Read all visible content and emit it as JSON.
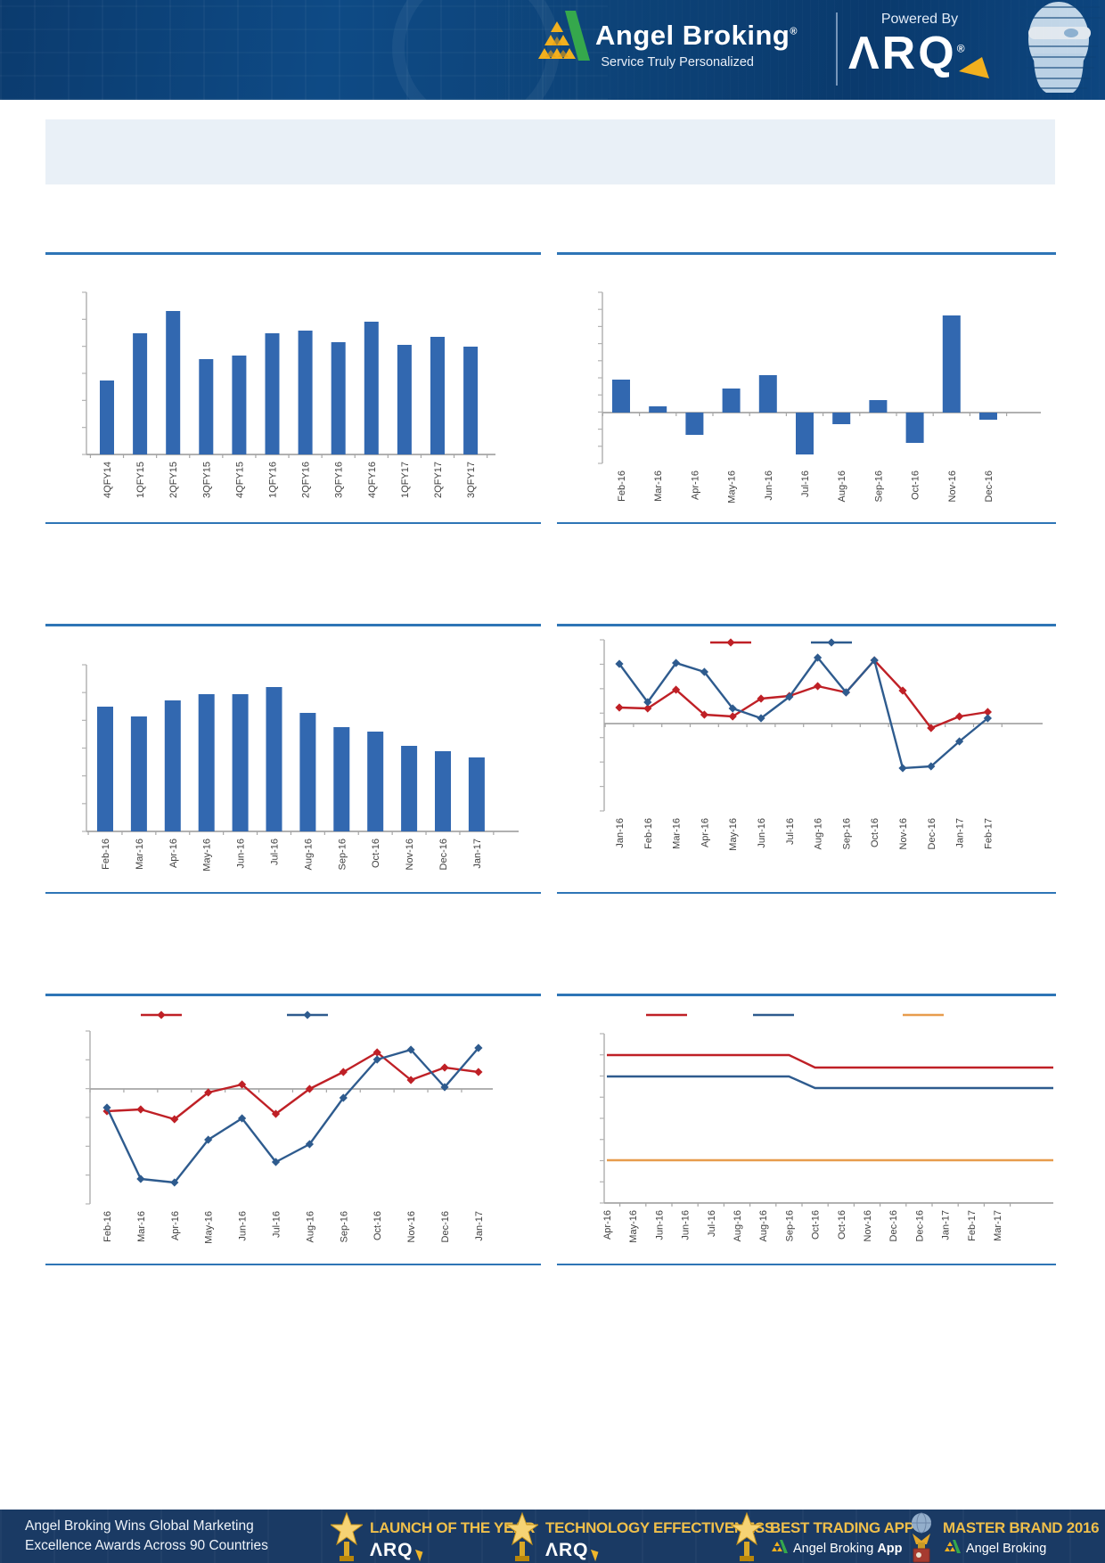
{
  "header": {
    "brand": "Angel Broking",
    "brand_registered": "®",
    "tagline": "Service Truly Personalized",
    "powered_by": "Powered By",
    "arq": "ΛRQ",
    "arq_registered": "®"
  },
  "banner": {
    "text": ""
  },
  "colors": {
    "bar_blue": "#3268b0",
    "line_dark_blue": "#2e5b8e",
    "line_red": "#bf2026",
    "line_orange": "#e79c4d",
    "accent_rule_blue": "#2e75b6",
    "axis_gray": "#a9a9a9",
    "header_navy": "#0d4378",
    "footer_navy": "#1a3a64",
    "banner_light_blue": "#e9f0f7",
    "award_gold": "#efbf4b"
  },
  "charts": [
    {
      "id": "quarterly-bar",
      "title": "",
      "chart_data": {
        "type": "bar",
        "categories": [
          "4QFY14",
          "1QFY15",
          "2QFY15",
          "3QFY15",
          "4QFY15",
          "1QFY16",
          "2QFY16",
          "3QFY16",
          "4QFY16",
          "1QFY17",
          "2QFY17",
          "3QFY17"
        ],
        "values": [
          83,
          136,
          161,
          107,
          111,
          136,
          139,
          126,
          149,
          123,
          132,
          121
        ],
        "units": "relative (y-axis labels not shown in source)",
        "ylim": [
          0,
          182
        ],
        "bar_color": "#3268b0",
        "grid": false,
        "y_tick_count": 7
      }
    },
    {
      "id": "monthly-net-change-bar",
      "title": "",
      "chart_data": {
        "type": "bar",
        "categories": [
          "Feb-16",
          "Mar-16",
          "Apr-16",
          "May-16",
          "Jun-16",
          "Jul-16",
          "Aug-16",
          "Sep-16",
          "Oct-16",
          "Nov-16",
          "Dec-16"
        ],
        "values": [
          37,
          7,
          -25,
          27,
          42,
          -47,
          -13,
          14,
          -34,
          109,
          -8
        ],
        "units": "relative (y-axis labels not shown in source)",
        "ylim": [
          -57,
          135
        ],
        "bar_color": "#3268b0",
        "grid": false,
        "y_tick_count": 11
      }
    },
    {
      "id": "monthly-declining-bar",
      "title": "",
      "chart_data": {
        "type": "bar",
        "categories": [
          "Feb-16",
          "Mar-16",
          "Apr-16",
          "May-16",
          "Jun-16",
          "Jul-16",
          "Aug-16",
          "Sep-16",
          "Oct-16",
          "Nov-16",
          "Dec-16",
          "Jan-17"
        ],
        "values": [
          140,
          129,
          147,
          154,
          154,
          162,
          133,
          117,
          112,
          96,
          90,
          83
        ],
        "units": "relative (y-axis labels not shown in source)",
        "ylim": [
          0,
          187
        ],
        "bar_color": "#3268b0",
        "grid": false,
        "y_tick_count": 7
      }
    },
    {
      "id": "two-series-line-jan16-feb17",
      "title": "",
      "chart_data": {
        "type": "line",
        "categories": [
          "Jan-16",
          "Feb-16",
          "Mar-16",
          "Apr-16",
          "May-16",
          "Jun-16",
          "Jul-16",
          "Aug-16",
          "Sep-16",
          "Oct-16",
          "Nov-16",
          "Dec-16",
          "Jan-17",
          "Feb-17"
        ],
        "series": [
          {
            "name": "red-series",
            "color": "#bf2026",
            "marker": "diamond",
            "values": [
              18,
              17,
              38,
              10,
              8,
              28,
              31,
              42,
              35,
              71,
              37,
              -5,
              8,
              13
            ]
          },
          {
            "name": "blue-series",
            "color": "#2e5b8e",
            "marker": "diamond",
            "values": [
              67,
              24,
              68,
              58,
              17,
              6,
              30,
              74,
              35,
              71,
              -50,
              -48,
              -20,
              6
            ]
          }
        ],
        "legend": [
          {
            "label": "",
            "color": "#bf2026",
            "marker": "diamond"
          },
          {
            "label": "",
            "color": "#2e5b8e",
            "marker": "diamond"
          }
        ],
        "legend_position": "top",
        "units": "relative (y-axis labels not shown in source)",
        "ylim": [
          -98,
          94
        ],
        "grid": false,
        "y_tick_count": 8
      }
    },
    {
      "id": "two-series-line-feb16-jan17",
      "title": "",
      "chart_data": {
        "type": "line",
        "categories": [
          "Feb-16",
          "Mar-16",
          "Apr-16",
          "May-16",
          "Jun-16",
          "Jul-16",
          "Aug-16",
          "Sep-16",
          "Oct-16",
          "Nov-16",
          "Dec-16",
          "Jan-17"
        ],
        "series": [
          {
            "name": "red-series",
            "color": "#bf2026",
            "marker": "diamond",
            "values": [
              -25,
              -23,
              -34,
              -4,
              5,
              -28,
              0,
              19,
              41,
              10,
              24,
              19
            ]
          },
          {
            "name": "blue-series",
            "color": "#2e5b8e",
            "marker": "diamond",
            "values": [
              -21,
              -101,
              -105,
              -57,
              -33,
              -82,
              -62,
              -10,
              33,
              44,
              2,
              46
            ]
          }
        ],
        "legend": [
          {
            "label": "",
            "color": "#bf2026",
            "marker": "diamond"
          },
          {
            "label": "",
            "color": "#2e5b8e",
            "marker": "diamond"
          }
        ],
        "legend_position": "top",
        "units": "relative (y-axis labels not shown in source)",
        "ylim": [
          -129,
          65
        ],
        "grid": false,
        "y_tick_count": 7
      }
    },
    {
      "id": "three-flat-step-lines",
      "title": "",
      "chart_data": {
        "type": "line",
        "categories": [
          "Apr-16",
          "May-16",
          "Jun-16",
          "Jun-16",
          "Jul-16",
          "Aug-16",
          "Aug-16",
          "Sep-16",
          "Oct-16",
          "Oct-16",
          "Nov-16",
          "Dec-16",
          "Dec-16",
          "Jan-17",
          "Feb-17",
          "Mar-17"
        ],
        "series": [
          {
            "name": "red-level",
            "color": "#bf2026",
            "marker": "none",
            "values": [
              166,
              166,
              166,
              166,
              166,
              166,
              166,
              166,
              152,
              152,
              152,
              152,
              152,
              152,
              152,
              152
            ]
          },
          {
            "name": "blue-level",
            "color": "#2e5b8e",
            "marker": "none",
            "values": [
              142,
              142,
              142,
              142,
              142,
              142,
              142,
              142,
              129,
              129,
              129,
              129,
              129,
              129,
              129,
              129
            ]
          },
          {
            "name": "orange-level",
            "color": "#e79c4d",
            "marker": "none",
            "values": [
              48,
              48,
              48,
              48,
              48,
              48,
              48,
              48,
              48,
              48,
              48,
              48,
              48,
              48,
              48,
              48
            ]
          }
        ],
        "legend": [
          {
            "label": "",
            "color": "#bf2026",
            "marker": "none"
          },
          {
            "label": "",
            "color": "#2e5b8e",
            "marker": "none"
          },
          {
            "label": "",
            "color": "#e79c4d",
            "marker": "none"
          }
        ],
        "legend_position": "top",
        "units": "relative (y-axis labels not shown in source); step down occurs at first Oct-16",
        "ylim": [
          0,
          190
        ],
        "grid": false,
        "y_tick_count": 9
      }
    }
  ],
  "footer": {
    "headline_line1": "Angel Broking Wins Global Marketing",
    "headline_line2": "Excellence Awards Across 90 Countries",
    "awards": [
      {
        "title": "LAUNCH OF THE YEAR",
        "subtitle": "ΛRQ",
        "icon": "star-trophy"
      },
      {
        "title": "TECHNOLOGY EFFECTIVENESS",
        "subtitle": "ΛRQ",
        "icon": "star-trophy"
      },
      {
        "title": "BEST TRADING APP",
        "subtitle": "Angel Broking",
        "subtitle_bold": "App",
        "icon": "star-trophy"
      },
      {
        "title": "MASTER BRAND 2016",
        "subtitle": "Angel Broking",
        "icon": "globe-trophy"
      }
    ]
  }
}
